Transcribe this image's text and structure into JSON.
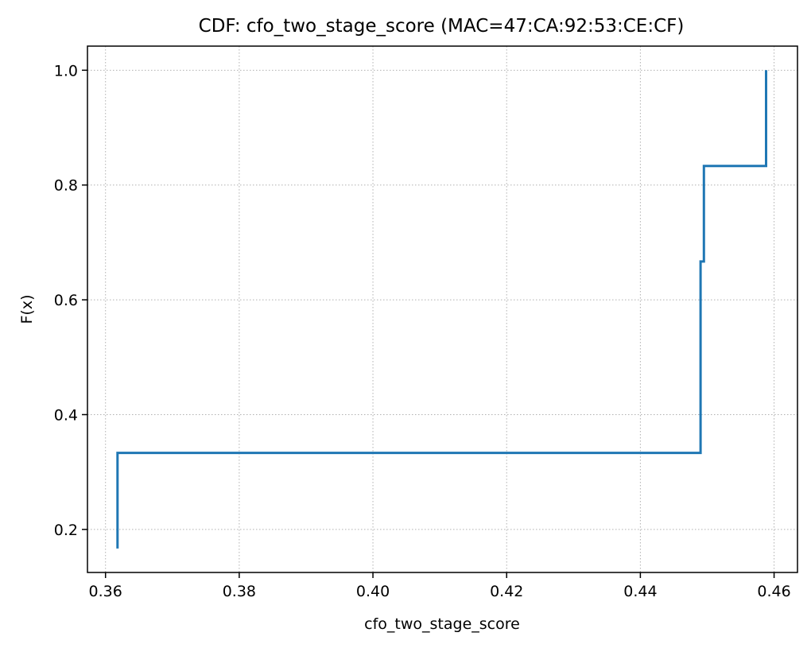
{
  "chart_data": {
    "type": "line",
    "title": "CDF: cfo_two_stage_score (MAC=47:CA:92:53:CE:CF)",
    "xlabel": "cfo_two_stage_score",
    "ylabel": "F(x)",
    "xlim": [
      0.3573,
      0.4635
    ],
    "ylim": [
      0.125,
      1.042
    ],
    "xticks": [
      0.36,
      0.38,
      0.4,
      0.42,
      0.44,
      0.46
    ],
    "xtick_labels": [
      "0.36",
      "0.38",
      "0.40",
      "0.42",
      "0.44",
      "0.46"
    ],
    "yticks": [
      0.2,
      0.4,
      0.6,
      0.8,
      1.0
    ],
    "ytick_labels": [
      "0.2",
      "0.4",
      "0.6",
      "0.8",
      "1.0"
    ],
    "grid": true,
    "line_color": "#1f77b4",
    "series": [
      {
        "x": [
          0.3618,
          0.3618,
          0.449,
          0.449,
          0.4495,
          0.4495,
          0.4588,
          0.4588
        ],
        "y": [
          0.1667,
          0.3333,
          0.3333,
          0.6667,
          0.6667,
          0.8333,
          0.8333,
          1.0
        ]
      }
    ]
  }
}
